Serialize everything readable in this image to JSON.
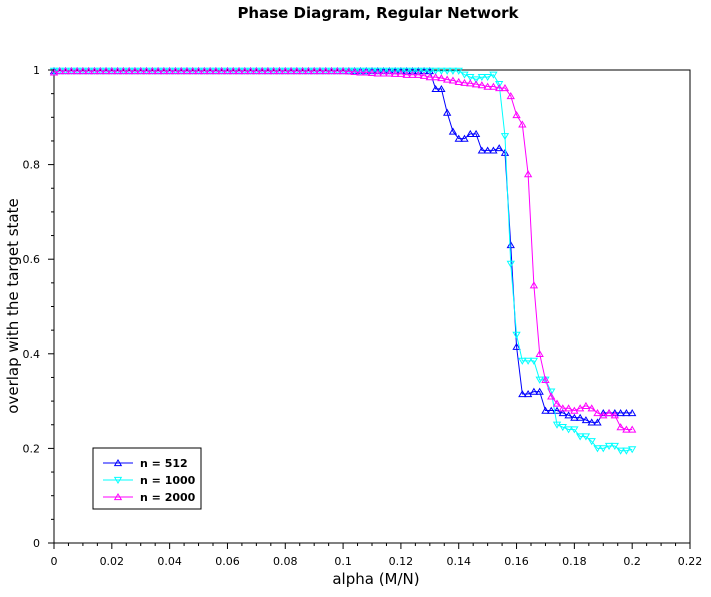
{
  "chart_data": {
    "type": "line",
    "title": "Phase Diagram, Regular Network",
    "xlabel": "alpha (M/N)",
    "ylabel": "overlap with the target state",
    "xlim": [
      0,
      0.22
    ],
    "ylim": [
      0,
      1
    ],
    "xticks": [
      "0",
      "0.02",
      "0.04",
      "0.06",
      "0.08",
      "0.1",
      "0.12",
      "0.14",
      "0.16",
      "0.18",
      "0.2",
      "0.22"
    ],
    "yticks": [
      "0",
      "0.2",
      "0.4",
      "0.6",
      "0.8",
      "1"
    ],
    "grid": false,
    "legend_position": "bottom-left",
    "series": [
      {
        "name": "n = 512",
        "color": "#0000ff",
        "marker": "triangle-up",
        "x": [
          0,
          0.002,
          0.004,
          0.006,
          0.008,
          0.01,
          0.012,
          0.014,
          0.016,
          0.018,
          0.02,
          0.022,
          0.024,
          0.026,
          0.028,
          0.03,
          0.032,
          0.034,
          0.036,
          0.038,
          0.04,
          0.042,
          0.044,
          0.046,
          0.048,
          0.05,
          0.052,
          0.054,
          0.056,
          0.058,
          0.06,
          0.062,
          0.064,
          0.066,
          0.068,
          0.07,
          0.072,
          0.074,
          0.076,
          0.078,
          0.08,
          0.082,
          0.084,
          0.086,
          0.088,
          0.09,
          0.092,
          0.094,
          0.096,
          0.098,
          0.1,
          0.102,
          0.104,
          0.106,
          0.108,
          0.11,
          0.112,
          0.114,
          0.116,
          0.118,
          0.12,
          0.122,
          0.124,
          0.126,
          0.128,
          0.13,
          0.132,
          0.134,
          0.136,
          0.138,
          0.14,
          0.142,
          0.144,
          0.146,
          0.148,
          0.15,
          0.152,
          0.154,
          0.156,
          0.158,
          0.16,
          0.162,
          0.164,
          0.166,
          0.168,
          0.17,
          0.172,
          0.174,
          0.176,
          0.178,
          0.18,
          0.182,
          0.184,
          0.186,
          0.188,
          0.19,
          0.192,
          0.194,
          0.196,
          0.198,
          0.2
        ],
        "y": [
          0.998,
          0.998,
          0.998,
          0.998,
          0.998,
          0.998,
          0.998,
          0.998,
          0.998,
          0.998,
          0.998,
          0.998,
          0.998,
          0.998,
          0.998,
          0.998,
          0.998,
          0.998,
          0.998,
          0.998,
          0.998,
          0.998,
          0.998,
          0.998,
          0.998,
          0.998,
          0.998,
          0.998,
          0.998,
          0.998,
          0.998,
          0.998,
          0.998,
          0.998,
          0.998,
          0.998,
          0.998,
          0.998,
          0.998,
          0.998,
          0.998,
          0.998,
          0.998,
          0.998,
          0.998,
          0.998,
          0.998,
          0.998,
          0.998,
          0.998,
          0.998,
          0.998,
          0.998,
          0.998,
          0.998,
          0.998,
          0.998,
          0.998,
          0.998,
          0.998,
          0.998,
          0.998,
          0.998,
          0.998,
          0.998,
          0.998,
          0.96,
          0.96,
          0.91,
          0.87,
          0.855,
          0.855,
          0.865,
          0.865,
          0.83,
          0.83,
          0.83,
          0.835,
          0.825,
          0.63,
          0.415,
          0.315,
          0.315,
          0.32,
          0.32,
          0.28,
          0.28,
          0.28,
          0.275,
          0.27,
          0.265,
          0.265,
          0.26,
          0.255,
          0.255,
          0.275,
          0.275,
          0.275,
          0.275,
          0.275,
          0.275
        ]
      },
      {
        "name": "n = 1000",
        "color": "#00ffff",
        "marker": "triangle-down",
        "x": [
          0,
          0.002,
          0.004,
          0.006,
          0.008,
          0.01,
          0.012,
          0.014,
          0.016,
          0.018,
          0.02,
          0.022,
          0.024,
          0.026,
          0.028,
          0.03,
          0.032,
          0.034,
          0.036,
          0.038,
          0.04,
          0.042,
          0.044,
          0.046,
          0.048,
          0.05,
          0.052,
          0.054,
          0.056,
          0.058,
          0.06,
          0.062,
          0.064,
          0.066,
          0.068,
          0.07,
          0.072,
          0.074,
          0.076,
          0.078,
          0.08,
          0.082,
          0.084,
          0.086,
          0.088,
          0.09,
          0.092,
          0.094,
          0.096,
          0.098,
          0.1,
          0.102,
          0.104,
          0.106,
          0.108,
          0.11,
          0.112,
          0.114,
          0.116,
          0.118,
          0.12,
          0.122,
          0.124,
          0.126,
          0.128,
          0.13,
          0.132,
          0.134,
          0.136,
          0.138,
          0.14,
          0.142,
          0.144,
          0.146,
          0.148,
          0.15,
          0.152,
          0.154,
          0.156,
          0.158,
          0.16,
          0.162,
          0.164,
          0.166,
          0.168,
          0.17,
          0.172,
          0.174,
          0.176,
          0.178,
          0.18,
          0.182,
          0.184,
          0.186,
          0.188,
          0.19,
          0.192,
          0.194,
          0.196,
          0.198,
          0.2
        ],
        "y": [
          0.998,
          0.998,
          0.998,
          0.998,
          0.998,
          0.998,
          0.998,
          0.998,
          0.998,
          0.998,
          0.998,
          0.998,
          0.998,
          0.998,
          0.998,
          0.998,
          0.998,
          0.998,
          0.998,
          0.998,
          0.998,
          0.998,
          0.998,
          0.998,
          0.998,
          0.998,
          0.998,
          0.998,
          0.998,
          0.998,
          0.998,
          0.998,
          0.998,
          0.998,
          0.998,
          0.998,
          0.998,
          0.998,
          0.998,
          0.998,
          0.998,
          0.998,
          0.998,
          0.998,
          0.998,
          0.998,
          0.998,
          0.998,
          0.998,
          0.998,
          0.998,
          0.998,
          0.998,
          0.998,
          0.998,
          0.998,
          0.998,
          0.998,
          0.998,
          0.998,
          0.998,
          0.998,
          0.998,
          0.998,
          0.998,
          0.998,
          0.998,
          0.998,
          0.998,
          0.998,
          0.998,
          0.99,
          0.985,
          0.98,
          0.985,
          0.985,
          0.99,
          0.97,
          0.86,
          0.59,
          0.44,
          0.385,
          0.385,
          0.385,
          0.345,
          0.345,
          0.32,
          0.25,
          0.245,
          0.24,
          0.24,
          0.225,
          0.225,
          0.215,
          0.2,
          0.2,
          0.205,
          0.205,
          0.195,
          0.195,
          0.198
        ]
      },
      {
        "name": "n = 2000",
        "color": "#ff00ff",
        "marker": "triangle-up",
        "x": [
          0,
          0.002,
          0.004,
          0.006,
          0.008,
          0.01,
          0.012,
          0.014,
          0.016,
          0.018,
          0.02,
          0.022,
          0.024,
          0.026,
          0.028,
          0.03,
          0.032,
          0.034,
          0.036,
          0.038,
          0.04,
          0.042,
          0.044,
          0.046,
          0.048,
          0.05,
          0.052,
          0.054,
          0.056,
          0.058,
          0.06,
          0.062,
          0.064,
          0.066,
          0.068,
          0.07,
          0.072,
          0.074,
          0.076,
          0.078,
          0.08,
          0.082,
          0.084,
          0.086,
          0.088,
          0.09,
          0.092,
          0.094,
          0.096,
          0.098,
          0.1,
          0.102,
          0.104,
          0.106,
          0.108,
          0.11,
          0.112,
          0.114,
          0.116,
          0.118,
          0.12,
          0.122,
          0.124,
          0.126,
          0.128,
          0.13,
          0.132,
          0.134,
          0.136,
          0.138,
          0.14,
          0.142,
          0.144,
          0.146,
          0.148,
          0.15,
          0.152,
          0.154,
          0.156,
          0.158,
          0.16,
          0.162,
          0.164,
          0.166,
          0.168,
          0.17,
          0.172,
          0.174,
          0.176,
          0.178,
          0.18,
          0.182,
          0.184,
          0.186,
          0.188,
          0.19,
          0.192,
          0.194,
          0.196,
          0.198,
          0.2
        ],
        "y": [
          0.995,
          0.998,
          0.998,
          0.998,
          0.998,
          0.998,
          0.998,
          0.998,
          0.998,
          0.998,
          0.998,
          0.998,
          0.998,
          0.998,
          0.998,
          0.998,
          0.998,
          0.998,
          0.998,
          0.998,
          0.998,
          0.998,
          0.998,
          0.998,
          0.998,
          0.998,
          0.998,
          0.998,
          0.998,
          0.998,
          0.998,
          0.998,
          0.998,
          0.998,
          0.998,
          0.998,
          0.998,
          0.998,
          0.998,
          0.998,
          0.998,
          0.998,
          0.998,
          0.998,
          0.998,
          0.998,
          0.998,
          0.998,
          0.998,
          0.998,
          0.998,
          0.997,
          0.996,
          0.995,
          0.995,
          0.994,
          0.993,
          0.993,
          0.993,
          0.992,
          0.992,
          0.99,
          0.99,
          0.99,
          0.988,
          0.985,
          0.985,
          0.983,
          0.98,
          0.978,
          0.975,
          0.973,
          0.972,
          0.97,
          0.968,
          0.965,
          0.965,
          0.962,
          0.962,
          0.945,
          0.905,
          0.885,
          0.78,
          0.545,
          0.4,
          0.345,
          0.31,
          0.295,
          0.285,
          0.285,
          0.28,
          0.285,
          0.29,
          0.285,
          0.275,
          0.27,
          0.275,
          0.27,
          0.245,
          0.24,
          0.24
        ]
      }
    ]
  }
}
